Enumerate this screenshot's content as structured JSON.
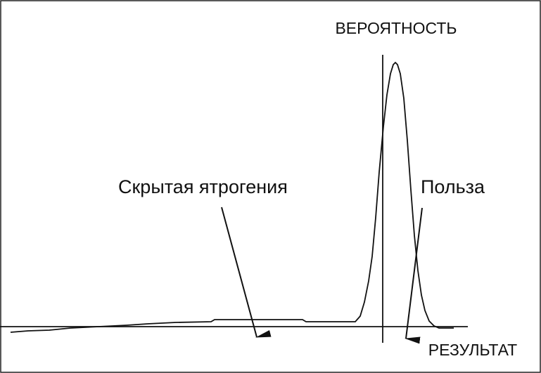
{
  "labels": {
    "y_axis": "ВЕРОЯТНОСТЬ",
    "x_axis": "РЕЗУЛЬТАТ",
    "hidden_iatrogeny": "Скрытая ятрогения",
    "benefit": "Польза"
  }
}
